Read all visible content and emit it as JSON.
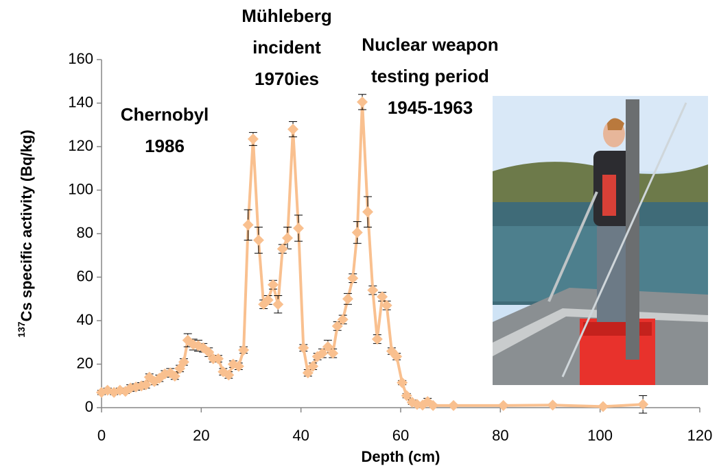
{
  "chart_data": {
    "type": "line",
    "x_label": "Depth (cm)",
    "y_label_superscript": "137",
    "y_label": "Cs specific activity (Bq/kg)",
    "color": "#f9c08f",
    "marker": "diamond",
    "xlim": [
      0,
      120
    ],
    "xticks": [
      0,
      20,
      40,
      60,
      80,
      100,
      120
    ],
    "ylim": [
      0,
      160
    ],
    "yticks": [
      0,
      20,
      40,
      60,
      80,
      100,
      120,
      140,
      160
    ],
    "grid": false,
    "x": [
      0,
      1.2,
      2.5,
      3.7,
      4.8,
      5.8,
      6.9,
      8,
      8.9,
      9.6,
      10.6,
      11.6,
      12.7,
      13.8,
      14.7,
      15.7,
      16.5,
      17.3,
      18.4,
      19.4,
      20.4,
      21.5,
      22.4,
      23.4,
      24.4,
      25.5,
      26.4,
      27.5,
      28.5,
      29.4,
      30.4,
      31.5,
      32.5,
      33.4,
      34.4,
      35.4,
      36.3,
      37.3,
      38.4,
      39.5,
      40.5,
      41.4,
      42.4,
      43.3,
      44.3,
      45.4,
      46.4,
      47.3,
      48.4,
      49.4,
      50.4,
      51.3,
      52.3,
      53.4,
      54.4,
      55.3,
      56.3,
      57.2,
      58.2,
      59.2,
      60.3,
      61.2,
      62.3,
      63.3,
      64.4,
      65.4,
      66.5,
      70.6,
      80.6,
      90.5,
      100.6,
      108.6
    ],
    "values": [
      7,
      8,
      7,
      8,
      7.5,
      9,
      9.5,
      10,
      10.5,
      14,
      12,
      13.5,
      15.5,
      16,
      14.5,
      18,
      21,
      31,
      29,
      28.5,
      27.5,
      25.5,
      22.5,
      22.5,
      16.5,
      15,
      20,
      19,
      26.5,
      84,
      123.5,
      77,
      47.5,
      49.5,
      56.5,
      47.5,
      73,
      78,
      128,
      82.5,
      27.5,
      16,
      19,
      23.5,
      25,
      28,
      25,
      37.5,
      40.5,
      50,
      59.5,
      80.5,
      140.5,
      90,
      54,
      31.5,
      51,
      47,
      26,
      23.5,
      11.5,
      5.5,
      2.5,
      1.5,
      1.2,
      2.8,
      1,
      1,
      1,
      1.2,
      0.5,
      1.5
    ],
    "errors": [
      1,
      1,
      1,
      1,
      1,
      1.5,
      1.5,
      1.5,
      1.5,
      1.5,
      1.5,
      1.5,
      1.5,
      2,
      1.5,
      1.5,
      1.5,
      3,
      2.5,
      2.5,
      2,
      2,
      1.5,
      1.5,
      1.5,
      1.5,
      1.5,
      1.5,
      1.5,
      7,
      3,
      6,
      2,
      2,
      2,
      4,
      2,
      5,
      3.5,
      6,
      1.5,
      1.5,
      1.5,
      1.5,
      2,
      3,
      2,
      2,
      2,
      2.5,
      2,
      5,
      3.5,
      7,
      2,
      2,
      2,
      2,
      1.5,
      1.5,
      1,
      1,
      1,
      0.5,
      0.5,
      1.5,
      0.5,
      0.5,
      0.5,
      0.5,
      0.5,
      4
    ],
    "annotations": [
      {
        "lines": [
          "Chernobyl",
          "1986"
        ]
      },
      {
        "lines": [
          "Mühleberg",
          "incident",
          "1970ies"
        ]
      },
      {
        "lines": [
          "Nuclear weapon",
          "testing period",
          "1945-1963"
        ]
      }
    ]
  }
}
